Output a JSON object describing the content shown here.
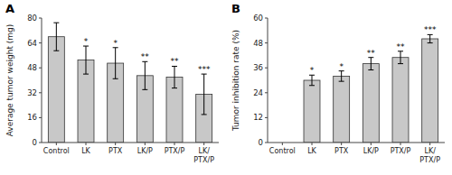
{
  "chart_data": [
    {
      "type": "bar",
      "title": "A",
      "ylabel": "Average tumor weight (mg)",
      "categories": [
        "Control",
        "LK",
        "PTX",
        "LK/P",
        "PTX/P",
        "LK/\nPTX/P"
      ],
      "values": [
        68,
        53,
        51,
        43,
        42,
        31
      ],
      "errors": [
        9,
        9,
        10,
        9,
        7,
        13
      ],
      "annotations": [
        null,
        "*",
        "*",
        "**",
        "**",
        "***"
      ],
      "color": "#c8c8c8",
      "ylim": [
        0,
        80
      ],
      "yticks": [
        0,
        16,
        32,
        48,
        64,
        80
      ],
      "grid": false
    },
    {
      "type": "bar",
      "title": "B",
      "ylabel": "Tumor inhibition rate (%)",
      "categories": [
        "Control",
        "LK",
        "PTX",
        "LK/P",
        "PTX/P",
        "LK/\nPTX/P"
      ],
      "values": [
        0,
        30,
        32,
        38,
        41,
        50
      ],
      "errors": [
        0,
        2.5,
        2.5,
        3,
        3,
        2
      ],
      "annotations": [
        null,
        "*",
        "*",
        "**",
        "**",
        "***"
      ],
      "color": "#c8c8c8",
      "ylim": [
        0,
        60
      ],
      "yticks": [
        0,
        12,
        24,
        36,
        48,
        60
      ],
      "grid": false
    }
  ]
}
